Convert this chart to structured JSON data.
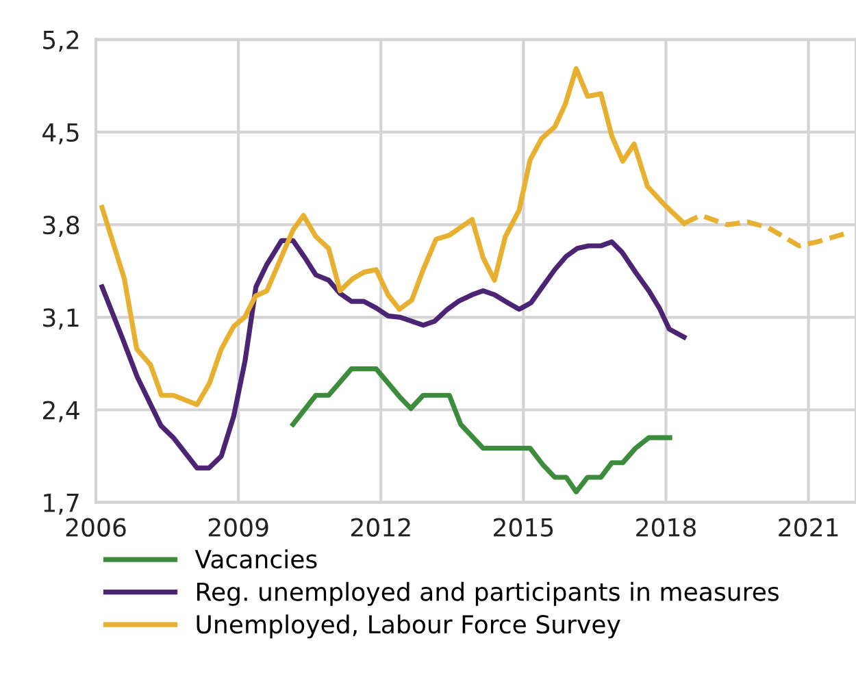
{
  "chart_data": {
    "type": "line",
    "xlim": [
      2006,
      2022
    ],
    "xticks": [
      2006,
      2009,
      2012,
      2015,
      2018,
      2021
    ],
    "ylim": [
      1.7,
      5.2
    ],
    "yticks": [
      {
        "value": 1.7,
        "label": "1,7"
      },
      {
        "value": 2.4,
        "label": "2,4"
      },
      {
        "value": 3.1,
        "label": "3,1"
      },
      {
        "value": 3.8,
        "label": "3,8"
      },
      {
        "value": 4.5,
        "label": "4,5"
      },
      {
        "value": 5.2,
        "label": "5,2"
      }
    ],
    "grid": true,
    "legend": "bottom",
    "marker": "none",
    "series": [
      {
        "name": "Vacancies",
        "color": "#3d8b3d",
        "line_style": "solid",
        "x": [
          2010.15,
          2010.63,
          2010.9,
          2011.38,
          2011.9,
          2012.39,
          2012.63,
          2012.89,
          2013.44,
          2013.68,
          2014.15,
          2015.14,
          2015.42,
          2015.66,
          2015.9,
          2016.11,
          2016.35,
          2016.63,
          2016.86,
          2017.09,
          2017.36,
          2017.64,
          2018.08
        ],
        "values": [
          2.29,
          2.51,
          2.51,
          2.71,
          2.71,
          2.5,
          2.41,
          2.51,
          2.51,
          2.29,
          2.11,
          2.11,
          1.98,
          1.89,
          1.89,
          1.78,
          1.89,
          1.89,
          2.0,
          2.0,
          2.11,
          2.19,
          2.19
        ]
      },
      {
        "name": "Reg. unemployed and participants in measures",
        "color": "#4b2574",
        "line_style": "solid",
        "x": [
          2006.13,
          2006.55,
          2006.87,
          2007.37,
          2007.63,
          2008.13,
          2008.38,
          2008.64,
          2008.9,
          2009.14,
          2009.37,
          2009.6,
          2009.91,
          2010.15,
          2010.4,
          2010.63,
          2010.9,
          2011.14,
          2011.38,
          2011.64,
          2011.9,
          2012.15,
          2012.41,
          2012.65,
          2012.89,
          2013.13,
          2013.4,
          2013.63,
          2013.92,
          2014.15,
          2014.39,
          2014.67,
          2014.91,
          2015.16,
          2015.42,
          2015.66,
          2015.9,
          2016.13,
          2016.37,
          2016.63,
          2016.86,
          2017.08,
          2017.36,
          2017.64,
          2017.86,
          2018.07,
          2018.38
        ],
        "values": [
          3.33,
          2.95,
          2.65,
          2.28,
          2.19,
          1.96,
          1.96,
          2.05,
          2.35,
          2.77,
          3.33,
          3.5,
          3.68,
          3.68,
          3.55,
          3.42,
          3.38,
          3.28,
          3.22,
          3.22,
          3.17,
          3.11,
          3.1,
          3.07,
          3.04,
          3.07,
          3.16,
          3.22,
          3.27,
          3.3,
          3.27,
          3.21,
          3.16,
          3.21,
          3.34,
          3.46,
          3.56,
          3.62,
          3.64,
          3.64,
          3.67,
          3.59,
          3.44,
          3.3,
          3.17,
          3.01,
          2.95
        ]
      },
      {
        "name": "Unemployed, Labour Force Survey",
        "color": "#e8b030",
        "line_style": "solid",
        "x": [
          2006.13,
          2006.6,
          2006.86,
          2007.15,
          2007.38,
          2007.63,
          2008.13,
          2008.39,
          2008.64,
          2008.9,
          2009.13,
          2009.36,
          2009.6,
          2010.15,
          2010.37,
          2010.63,
          2010.9,
          2011.14,
          2011.4,
          2011.64,
          2011.9,
          2012.15,
          2012.39,
          2012.65,
          2012.89,
          2013.16,
          2013.44,
          2013.92,
          2014.15,
          2014.39,
          2014.62,
          2014.91,
          2015.14,
          2015.38,
          2015.66,
          2015.88,
          2016.11,
          2016.35,
          2016.63,
          2016.86,
          2017.09,
          2017.33,
          2017.61,
          2017.97,
          2018.38
        ],
        "values": [
          3.93,
          3.39,
          2.86,
          2.74,
          2.51,
          2.51,
          2.44,
          2.6,
          2.86,
          3.03,
          3.1,
          3.26,
          3.3,
          3.76,
          3.87,
          3.71,
          3.62,
          3.3,
          3.39,
          3.44,
          3.46,
          3.27,
          3.16,
          3.23,
          3.46,
          3.69,
          3.72,
          3.84,
          3.55,
          3.38,
          3.71,
          3.91,
          4.29,
          4.45,
          4.54,
          4.71,
          4.98,
          4.77,
          4.79,
          4.47,
          4.28,
          4.41,
          4.09,
          3.95,
          3.81
        ]
      },
      {
        "color": "#e8b030",
        "line_style": "dashed",
        "x": [
          2018.38,
          2018.73,
          2019.29,
          2019.72,
          2020.14,
          2020.52,
          2020.8,
          2021.18,
          2021.84
        ],
        "values": [
          3.81,
          3.87,
          3.8,
          3.82,
          3.78,
          3.7,
          3.64,
          3.67,
          3.74
        ]
      }
    ]
  }
}
